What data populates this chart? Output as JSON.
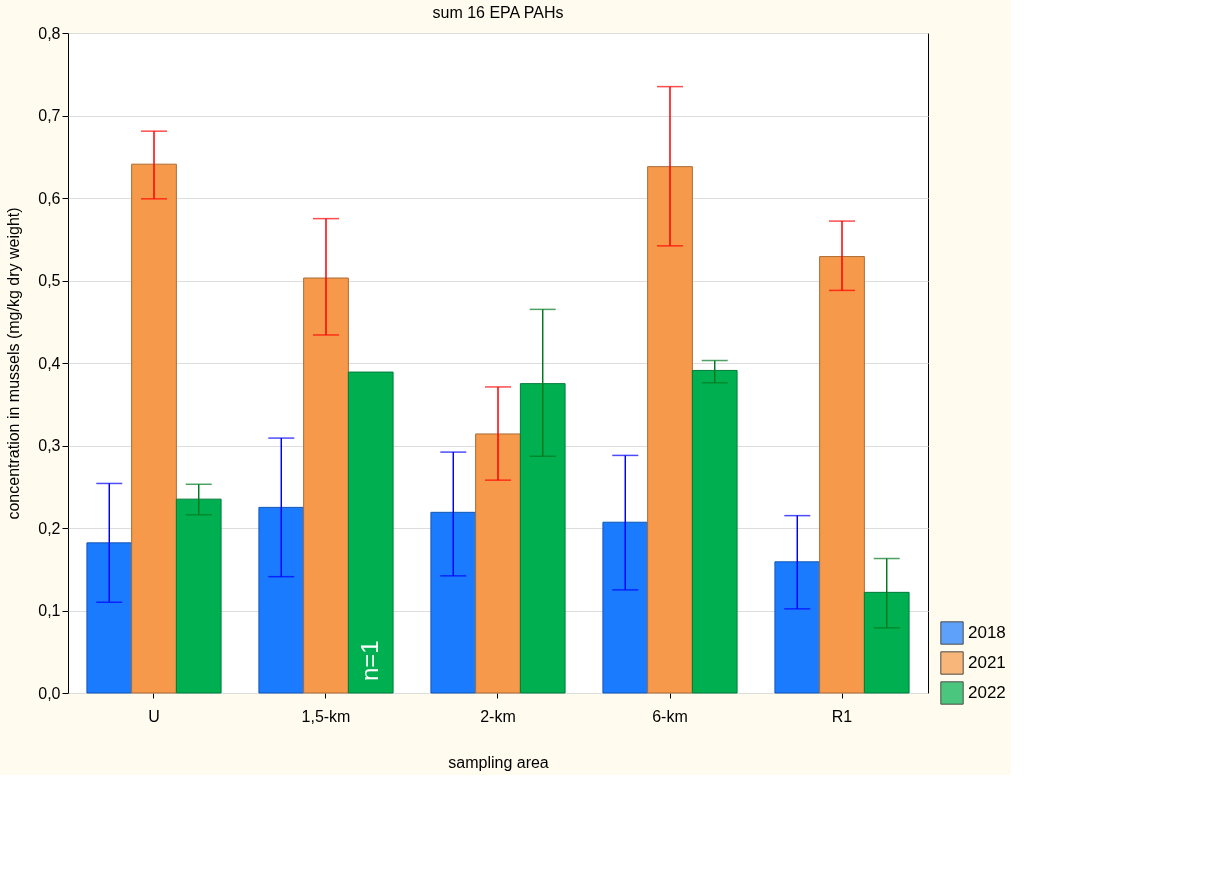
{
  "chart_data": {
    "type": "bar",
    "title": "sum 16 EPA PAHs",
    "xlabel": "sampling area",
    "ylabel": "concentration in mussels (mg/kg dry weight)",
    "categories": [
      "U",
      "1,5-km",
      "2-km",
      "6-km",
      "R1"
    ],
    "series": [
      {
        "name": "2018",
        "color": "#1a7bff",
        "values": [
          0.182,
          0.225,
          0.219,
          0.207,
          0.159
        ],
        "errors": [
          [
            0.11,
            0.254
          ],
          [
            0.141,
            0.309
          ],
          [
            0.142,
            0.292
          ],
          [
            0.125,
            0.288
          ],
          [
            0.102,
            0.215
          ]
        ]
      },
      {
        "name": "2021",
        "color": "#f7994a",
        "values": [
          0.641,
          0.503,
          0.314,
          0.638,
          0.529
        ],
        "errors": [
          [
            0.599,
            0.681
          ],
          [
            0.434,
            0.575
          ],
          [
            0.258,
            0.371
          ],
          [
            0.542,
            0.735
          ],
          [
            0.488,
            0.572
          ]
        ]
      },
      {
        "name": "2022",
        "color": "#00b050",
        "values": [
          0.235,
          0.389,
          0.375,
          0.391,
          0.122
        ],
        "errors": [
          [
            0.216,
            0.253
          ],
          null,
          [
            0.287,
            0.465
          ],
          [
            0.376,
            0.403
          ],
          [
            0.079,
            0.163
          ]
        ]
      }
    ],
    "ylim": [
      0,
      0.8
    ],
    "yticks": [
      {
        "value": 0,
        "label": "0,0"
      },
      {
        "value": 0.1,
        "label": "0,1"
      },
      {
        "value": 0.2,
        "label": "0,2"
      },
      {
        "value": 0.3,
        "label": "0,3"
      },
      {
        "value": 0.4,
        "label": "0,4"
      },
      {
        "value": 0.5,
        "label": "0,5"
      },
      {
        "value": 0.6,
        "label": "0,6"
      },
      {
        "value": 0.7,
        "label": "0,7"
      },
      {
        "value": 0.8,
        "label": "0,8"
      }
    ],
    "annotations": [
      "n=1"
    ],
    "grid": "y",
    "legend": "bottom right"
  }
}
